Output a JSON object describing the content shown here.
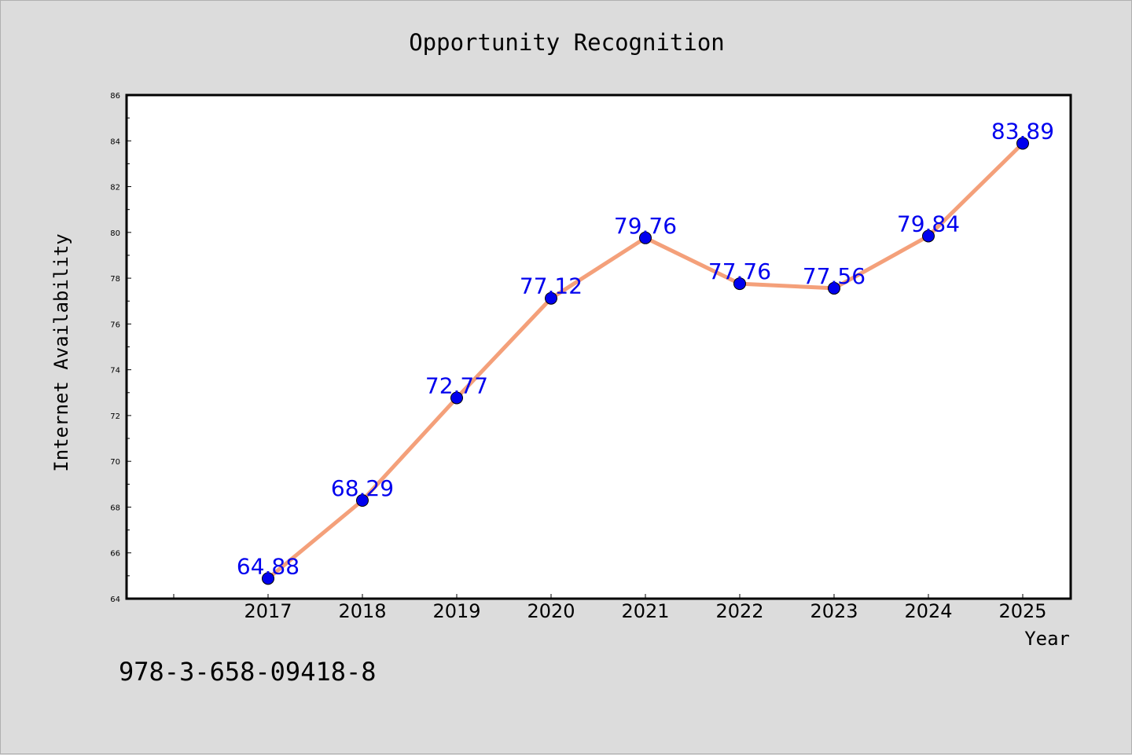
{
  "chart_data": {
    "type": "line",
    "title": "Opportunity Recognition",
    "xlabel": "Year",
    "ylabel": "Internet Availability",
    "categories": [
      "2017",
      "2018",
      "2019",
      "2020",
      "2021",
      "2022",
      "2023",
      "2024",
      "2025"
    ],
    "series": [
      {
        "values": [
          64.88,
          68.29,
          72.77,
          77.12,
          79.76,
          77.76,
          77.56,
          79.84,
          83.89
        ],
        "data_labels": [
          "64.88",
          "68.29",
          "72.77",
          "77.12",
          "79.76",
          "77.76",
          "77.56",
          "79.84",
          "83.89"
        ]
      }
    ],
    "ylim": [
      64,
      86
    ],
    "yticks": [
      "64",
      "66",
      "68",
      "70",
      "72",
      "74",
      "76",
      "78",
      "80",
      "82",
      "84",
      "86"
    ],
    "grid": false,
    "colors": {
      "line": "#f4a07a",
      "marker": "#0000ee",
      "label": "#0000ee",
      "plot_bg": "#ffffff",
      "page_bg": "#dcdcdc"
    },
    "annotation": "978-3-658-09418-8"
  }
}
